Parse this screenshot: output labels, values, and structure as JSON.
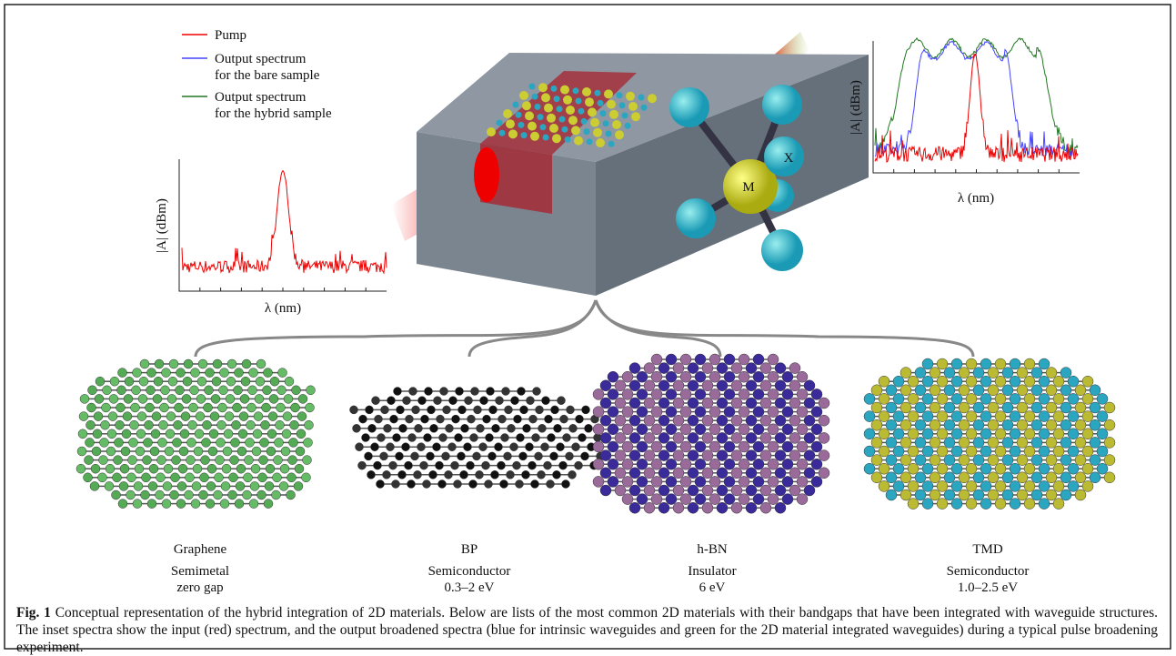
{
  "legend": {
    "items": [
      {
        "lines": [
          "Pump"
        ]
      },
      {
        "lines": [
          "Output spectrum",
          "for the bare sample"
        ]
      },
      {
        "lines": [
          "Output spectrum",
          "for the hybrid sample"
        ]
      }
    ]
  },
  "insets": [
    {
      "ylabel": "|A| (dBm)",
      "xlabel": "λ (nm)"
    },
    {
      "ylabel": "|A| (dBm)",
      "xlabel": "λ (nm)"
    }
  ],
  "atoms": [
    "M",
    "X"
  ],
  "materials": [
    {
      "name": "Graphene",
      "lines": [
        "Semimetal",
        "zero gap"
      ]
    },
    {
      "name": "BP",
      "lines": [
        "Semiconductor",
        "0.3–2 eV"
      ]
    },
    {
      "name": "h-BN",
      "lines": [
        "Insulator",
        "6 eV"
      ]
    },
    {
      "name": "TMD",
      "lines": [
        "Semiconductor",
        "1.0–2.5 eV"
      ]
    }
  ],
  "caption": {
    "label": "Fig. 1",
    "text": "Conceptual representation of the hybrid integration of 2D materials. Below are lists of the most common 2D materials with their bandgaps that have been integrated with waveguide structures. The inset spectra show the input (red) spectrum, and the output broadened spectra (blue for intrinsic waveguides and green for the 2D material integrated waveguides) during a typical pulse broadening experiment."
  }
}
